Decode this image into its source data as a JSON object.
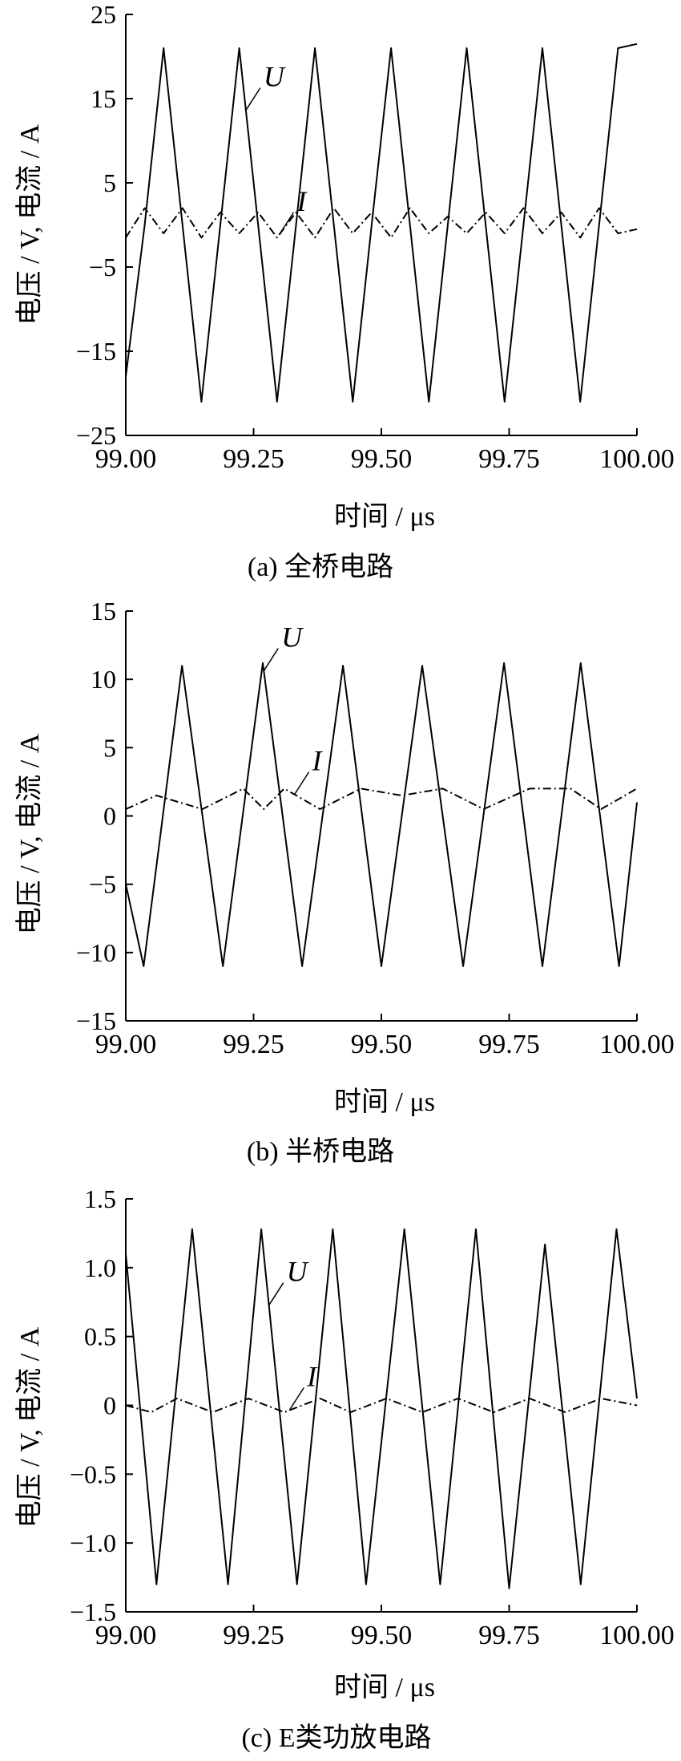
{
  "chart_data": [
    {
      "type": "line",
      "caption": "(a)  全桥电路",
      "xlabel": "时间 / μs",
      "ylabel": "电压 / V, 电流 / A",
      "xlim": [
        99.0,
        100.0
      ],
      "ylim": [
        -25,
        25
      ],
      "xticks": [
        "99.00",
        "99.25",
        "99.50",
        "99.75",
        "100.00"
      ],
      "yticks": [
        "25",
        "15",
        "5",
        "−5",
        "−15",
        "−25"
      ],
      "series": [
        {
          "name": "U",
          "style": "solid",
          "x": [
            99.0,
            99.037,
            99.074,
            99.111,
            99.148,
            99.185,
            99.222,
            99.259,
            99.296,
            99.333,
            99.37,
            99.407,
            99.444,
            99.481,
            99.519,
            99.556,
            99.593,
            99.63,
            99.667,
            99.704,
            99.741,
            99.778,
            99.815,
            99.852,
            99.889,
            99.926,
            99.963,
            100.0
          ],
          "y": [
            -18.0,
            0,
            21.0,
            0,
            -21.0,
            0,
            21.0,
            0,
            -21.0,
            0,
            21.0,
            0,
            -21.0,
            0,
            21.0,
            0,
            -21.0,
            0,
            21.0,
            0,
            -21.0,
            0,
            21.0,
            0,
            -21.0,
            0,
            21.0,
            21.5
          ]
        },
        {
          "name": "I",
          "style": "dash-dot",
          "x": [
            99.0,
            99.037,
            99.074,
            99.111,
            99.148,
            99.185,
            99.222,
            99.259,
            99.296,
            99.333,
            99.37,
            99.407,
            99.444,
            99.481,
            99.519,
            99.556,
            99.593,
            99.63,
            99.667,
            99.704,
            99.741,
            99.778,
            99.815,
            99.852,
            99.889,
            99.926,
            99.963,
            100.0
          ],
          "y": [
            -1.5,
            2.0,
            -1.0,
            2.0,
            -1.5,
            1.5,
            -1.0,
            1.5,
            -1.5,
            1.5,
            -1.5,
            2.0,
            -1.0,
            1.5,
            -1.5,
            2.0,
            -1.0,
            1.0,
            -1.0,
            1.5,
            -1.0,
            2.0,
            -1.0,
            1.5,
            -1.5,
            2.0,
            -1.0,
            -0.5
          ]
        }
      ],
      "annotations": [
        {
          "text": "U",
          "series": "U",
          "x": 99.235
        },
        {
          "text": "I",
          "series": "I",
          "x": 99.3
        }
      ]
    },
    {
      "type": "line",
      "caption": "(b)  半桥电路",
      "xlabel": "时间 / μs",
      "ylabel": "电压 / V, 电流 / A",
      "xlim": [
        99.0,
        100.0
      ],
      "ylim": [
        -15,
        15
      ],
      "xticks": [
        "99.00",
        "99.25",
        "99.50",
        "99.75",
        "100.00"
      ],
      "yticks": [
        "15",
        "10",
        "5",
        "0",
        "−5",
        "−10",
        "−15"
      ],
      "series": [
        {
          "name": "U",
          "style": "solid",
          "x": [
            99.0,
            99.035,
            99.11,
            99.19,
            99.268,
            99.345,
            99.425,
            99.5,
            99.58,
            99.66,
            99.74,
            99.815,
            99.89,
            99.965,
            100.0
          ],
          "y": [
            -5.0,
            -11.0,
            11.0,
            -11.0,
            11.2,
            -11.0,
            11.0,
            -11.0,
            11.0,
            -11.0,
            11.2,
            -11.0,
            11.2,
            -11.0,
            1.0
          ]
        },
        {
          "name": "I",
          "style": "dash-dot",
          "x": [
            99.0,
            99.06,
            99.15,
            99.23,
            99.27,
            99.31,
            99.38,
            99.46,
            99.54,
            99.62,
            99.7,
            99.79,
            99.87,
            99.93,
            100.0
          ],
          "y": [
            0.5,
            1.5,
            0.5,
            2.0,
            0.5,
            2.0,
            0.5,
            2.0,
            1.5,
            2.0,
            0.5,
            2.0,
            2.0,
            0.5,
            2.0
          ]
        }
      ],
      "annotations": [
        {
          "text": "U",
          "series": "U",
          "x": 99.27
        },
        {
          "text": "I",
          "series": "I",
          "x": 99.33
        }
      ]
    },
    {
      "type": "line",
      "caption": "(c)  E类功放电路",
      "xlabel": "时间 / μs",
      "ylabel": "电压 / V, 电流 / A",
      "xlim": [
        99.0,
        100.0
      ],
      "ylim": [
        -1.5,
        1.5
      ],
      "xticks": [
        "99.00",
        "99.25",
        "99.50",
        "99.75",
        "100.00"
      ],
      "yticks": [
        "1.5",
        "1.0",
        "0.5",
        "0",
        "−0.5",
        "−1.0",
        "−1.5"
      ],
      "series": [
        {
          "name": "U",
          "style": "solid",
          "x": [
            99.0,
            99.06,
            99.13,
            99.2,
            99.265,
            99.335,
            99.405,
            99.47,
            99.545,
            99.615,
            99.685,
            99.75,
            99.82,
            99.89,
            99.96,
            100.0
          ],
          "y": [
            1.1,
            -1.3,
            1.28,
            -1.3,
            1.28,
            -1.3,
            1.28,
            -1.3,
            1.28,
            -1.3,
            1.28,
            -1.33,
            1.17,
            -1.3,
            1.28,
            0.05
          ]
        },
        {
          "name": "I",
          "style": "dash-dot",
          "x": [
            99.0,
            99.05,
            99.1,
            99.17,
            99.24,
            99.31,
            99.38,
            99.44,
            99.51,
            99.58,
            99.65,
            99.72,
            99.79,
            99.86,
            99.93,
            100.0
          ],
          "y": [
            0.0,
            -0.05,
            0.05,
            -0.05,
            0.05,
            -0.05,
            0.05,
            -0.05,
            0.05,
            -0.05,
            0.05,
            -0.05,
            0.05,
            -0.05,
            0.05,
            0.0
          ]
        }
      ],
      "annotations": [
        {
          "text": "U",
          "series": "U",
          "x": 99.28
        },
        {
          "text": "I",
          "series": "I",
          "x": 99.32
        }
      ]
    }
  ]
}
